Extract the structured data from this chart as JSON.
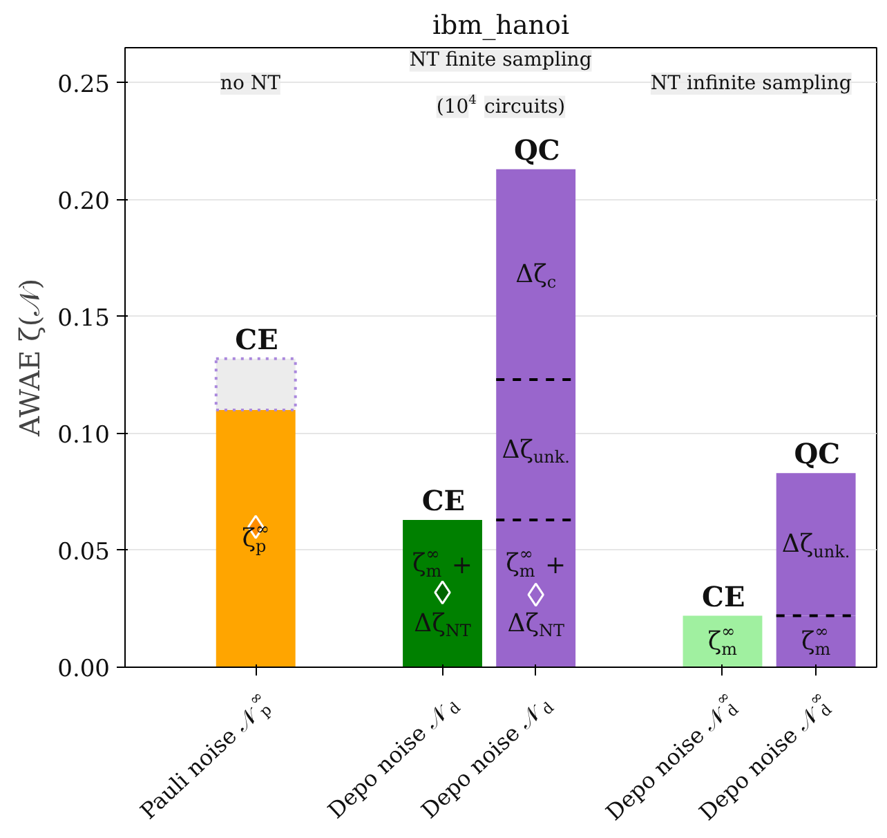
{
  "chart_data": {
    "type": "bar",
    "title": "ibm_hanoi",
    "ylabel": "AWAE ζ(𝒩)",
    "stacked": true,
    "categories": [
      "Pauli noise 𝒩$_{p}$$^{∞}$",
      null,
      "Depo noise 𝒩$_{d}$",
      "Depo noise 𝒩$_{d}$",
      null,
      "Depo noise 𝒩$_{d}$$^{∞}$",
      "Depo noise 𝒩$_{d}$$^{∞}$"
    ],
    "ylim": [
      0,
      0.265
    ],
    "yticks": [
      {
        "value": 0,
        "label": "0.00"
      },
      {
        "value": 0.05,
        "label": "0.05"
      },
      {
        "value": 0.1,
        "label": "0.10"
      },
      {
        "value": 0.15,
        "label": "0.15"
      },
      {
        "value": 0.2,
        "label": "0.20"
      },
      {
        "value": 0.25,
        "label": "0.25"
      }
    ],
    "grid": "y",
    "series": [
      {
        "values": [
          0.11,
          null,
          0.063,
          0.063,
          null,
          0.022,
          0.022
        ],
        "colors": [
          "#ffa500",
          null,
          "#008000",
          "#9966cc",
          null,
          "#a0f0a0",
          "#9966cc"
        ],
        "value_labels": [
          "ζ$_{p}$$^{∞}$",
          null,
          "ζ$_{m}$$^{∞}$ +\nΔζ$_{NT}$",
          "ζ$_{m}$$^{∞}$ +\nΔζ$_{NT}$",
          null,
          "ζ$_{m}$$^{∞}$",
          "ζ$_{m}$$^{∞}$"
        ]
      },
      {
        "values": [
          0.022,
          null,
          null,
          null,
          null,
          null,
          null
        ],
        "color": "#ececec",
        "line_style": "dotted"
      },
      {
        "values": [
          null,
          null,
          null,
          0.06,
          null,
          null,
          0.061
        ],
        "color": "#9966cc",
        "line_style": "dashed",
        "value_labels": [
          null,
          null,
          null,
          "Δζ$_{unk.}$",
          null,
          null,
          "Δζ$_{unk.}$"
        ]
      },
      {
        "values": [
          null,
          null,
          null,
          0.09,
          null,
          null,
          null
        ],
        "color": "#9966cc",
        "line_style": "dashed",
        "value_labels": [
          null,
          null,
          null,
          "Δζ$_{c}$",
          null,
          null,
          null
        ]
      },
      {
        "type": "scatter",
        "values": [
          0.06,
          null,
          0.032,
          0.031,
          null,
          null,
          null
        ],
        "colors": [
          "#ff8c00",
          null,
          "#006400",
          "#9966cc",
          null,
          null,
          null
        ],
        "marker": "diamond"
      }
    ],
    "totals": [
      "CE",
      null,
      "CE",
      "QC",
      null,
      "CE",
      "QC"
    ],
    "annotations": [
      "no NT",
      "NT finite sampling\n(10$^{4}$ circuits)",
      "NT infinite sampling"
    ]
  }
}
